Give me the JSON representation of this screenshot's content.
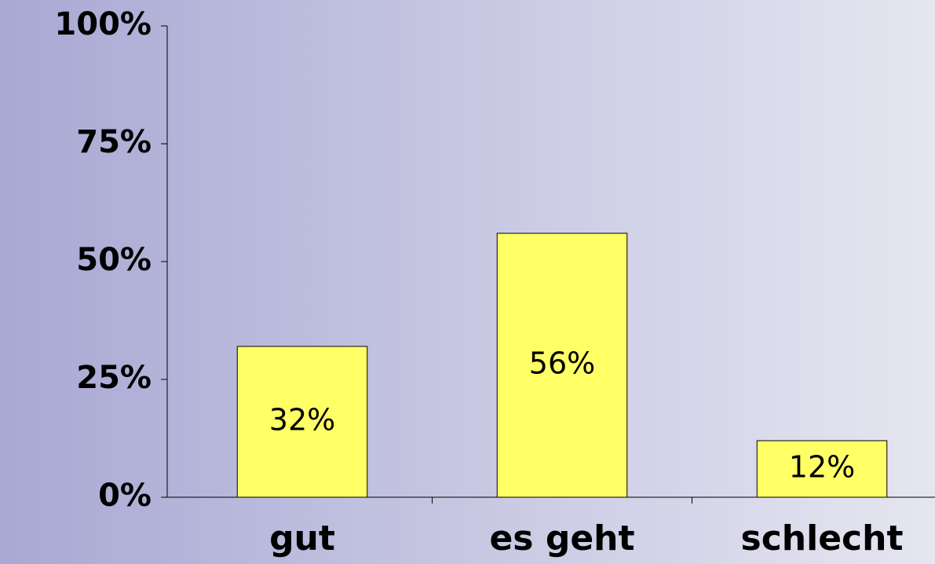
{
  "chart_data": {
    "type": "bar",
    "categories": [
      "gut",
      "es geht",
      "schlecht"
    ],
    "values": [
      32,
      56,
      12
    ],
    "value_labels": [
      "32%",
      "56%",
      "12%"
    ],
    "color": "#ffff66",
    "ylim": [
      0,
      100
    ],
    "yticks": [
      {
        "value": 0,
        "label": "0%"
      },
      {
        "value": 25,
        "label": "25%"
      },
      {
        "value": 50,
        "label": "50%"
      },
      {
        "value": 75,
        "label": "75%"
      },
      {
        "value": 100,
        "label": "100%"
      }
    ],
    "grid": false
  }
}
